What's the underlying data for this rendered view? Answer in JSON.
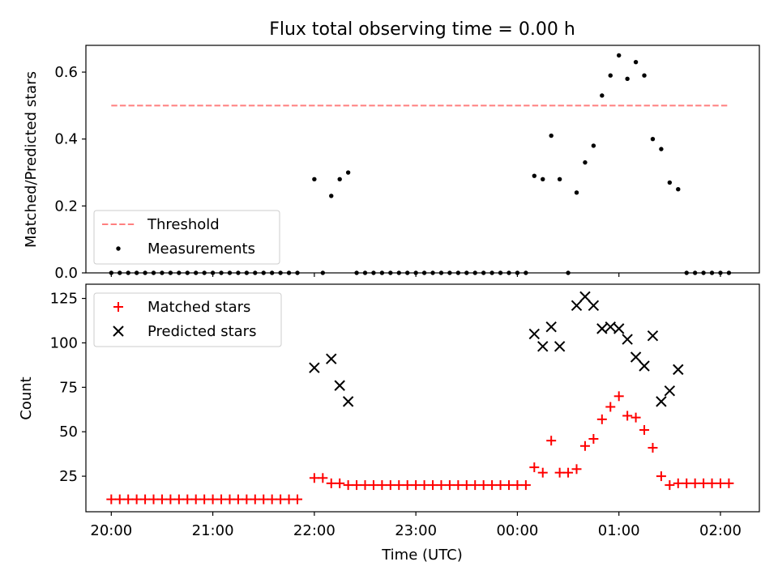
{
  "chart_data": [
    {
      "type": "scatter",
      "title": "Flux total observing time = 0.00 h",
      "ylabel": "Matched/Predicted stars",
      "xlabel": "",
      "x_domain": [
        "19:45",
        "02:23"
      ],
      "ylim": [
        0,
        0.68
      ],
      "y_ticks": [
        "0.0",
        "0.2",
        "0.4",
        "0.6"
      ],
      "legend": {
        "placement": "lower-left",
        "entries": [
          "Threshold",
          "Measurements"
        ]
      },
      "threshold": {
        "name": "Threshold",
        "value": 0.5,
        "x_range": [
          "20:00",
          "02:05"
        ],
        "color": "#ff7f7f"
      },
      "series": [
        {
          "name": "Measurements",
          "color": "#000000",
          "marker": "dot",
          "points": [
            [
              "20:00",
              0
            ],
            [
              "20:05",
              0
            ],
            [
              "20:10",
              0
            ],
            [
              "20:15",
              0
            ],
            [
              "20:20",
              0
            ],
            [
              "20:25",
              0
            ],
            [
              "20:30",
              0
            ],
            [
              "20:35",
              0
            ],
            [
              "20:40",
              0
            ],
            [
              "20:45",
              0
            ],
            [
              "20:50",
              0
            ],
            [
              "20:55",
              0
            ],
            [
              "21:00",
              0
            ],
            [
              "21:05",
              0
            ],
            [
              "21:10",
              0
            ],
            [
              "21:15",
              0
            ],
            [
              "21:20",
              0
            ],
            [
              "21:25",
              0
            ],
            [
              "21:30",
              0
            ],
            [
              "21:35",
              0
            ],
            [
              "21:40",
              0
            ],
            [
              "21:45",
              0
            ],
            [
              "21:50",
              0
            ],
            [
              "22:00",
              0.28
            ],
            [
              "22:05",
              0
            ],
            [
              "22:10",
              0.23
            ],
            [
              "22:15",
              0.28
            ],
            [
              "22:20",
              0.3
            ],
            [
              "22:25",
              0
            ],
            [
              "22:30",
              0
            ],
            [
              "22:35",
              0
            ],
            [
              "22:40",
              0
            ],
            [
              "22:45",
              0
            ],
            [
              "22:50",
              0
            ],
            [
              "22:55",
              0
            ],
            [
              "23:00",
              0
            ],
            [
              "23:05",
              0
            ],
            [
              "23:10",
              0
            ],
            [
              "23:15",
              0
            ],
            [
              "23:20",
              0
            ],
            [
              "23:25",
              0
            ],
            [
              "23:30",
              0
            ],
            [
              "23:35",
              0
            ],
            [
              "23:40",
              0
            ],
            [
              "23:45",
              0
            ],
            [
              "23:50",
              0
            ],
            [
              "23:55",
              0
            ],
            [
              "00:00",
              0
            ],
            [
              "00:05",
              0
            ],
            [
              "00:10",
              0.29
            ],
            [
              "00:15",
              0.28
            ],
            [
              "00:20",
              0.41
            ],
            [
              "00:25",
              0.28
            ],
            [
              "00:30",
              0
            ],
            [
              "00:35",
              0.24
            ],
            [
              "00:40",
              0.33
            ],
            [
              "00:45",
              0.38
            ],
            [
              "00:50",
              0.53
            ],
            [
              "00:55",
              0.59
            ],
            [
              "01:00",
              0.65
            ],
            [
              "01:05",
              0.58
            ],
            [
              "01:10",
              0.63
            ],
            [
              "01:15",
              0.59
            ],
            [
              "01:20",
              0.4
            ],
            [
              "01:25",
              0.37
            ],
            [
              "01:30",
              0.27
            ],
            [
              "01:35",
              0.25
            ],
            [
              "01:40",
              0
            ],
            [
              "01:45",
              0
            ],
            [
              "01:50",
              0
            ],
            [
              "01:55",
              0
            ],
            [
              "02:00",
              0
            ],
            [
              "02:05",
              0
            ]
          ]
        }
      ]
    },
    {
      "type": "scatter",
      "title": "",
      "ylabel": "Count",
      "xlabel": "Time (UTC)",
      "x_domain": [
        "19:45",
        "02:23"
      ],
      "ylim": [
        5,
        133
      ],
      "y_ticks": [
        25,
        50,
        75,
        100,
        125
      ],
      "x_ticks": [
        "20:00",
        "21:00",
        "22:00",
        "23:00",
        "00:00",
        "01:00",
        "02:00"
      ],
      "legend": {
        "placement": "upper-left",
        "entries": [
          "Matched stars",
          "Predicted stars"
        ]
      },
      "series": [
        {
          "name": "Matched stars",
          "color": "#ff0000",
          "marker": "plus",
          "points": [
            [
              "20:00",
              12
            ],
            [
              "20:05",
              12
            ],
            [
              "20:10",
              12
            ],
            [
              "20:15",
              12
            ],
            [
              "20:20",
              12
            ],
            [
              "20:25",
              12
            ],
            [
              "20:30",
              12
            ],
            [
              "20:35",
              12
            ],
            [
              "20:40",
              12
            ],
            [
              "20:45",
              12
            ],
            [
              "20:50",
              12
            ],
            [
              "20:55",
              12
            ],
            [
              "21:00",
              12
            ],
            [
              "21:05",
              12
            ],
            [
              "21:10",
              12
            ],
            [
              "21:15",
              12
            ],
            [
              "21:20",
              12
            ],
            [
              "21:25",
              12
            ],
            [
              "21:30",
              12
            ],
            [
              "21:35",
              12
            ],
            [
              "21:40",
              12
            ],
            [
              "21:45",
              12
            ],
            [
              "21:50",
              12
            ],
            [
              "22:00",
              24
            ],
            [
              "22:05",
              24
            ],
            [
              "22:10",
              21
            ],
            [
              "22:15",
              21
            ],
            [
              "22:20",
              20
            ],
            [
              "22:25",
              20
            ],
            [
              "22:30",
              20
            ],
            [
              "22:35",
              20
            ],
            [
              "22:40",
              20
            ],
            [
              "22:45",
              20
            ],
            [
              "22:50",
              20
            ],
            [
              "22:55",
              20
            ],
            [
              "23:00",
              20
            ],
            [
              "23:05",
              20
            ],
            [
              "23:10",
              20
            ],
            [
              "23:15",
              20
            ],
            [
              "23:20",
              20
            ],
            [
              "23:25",
              20
            ],
            [
              "23:30",
              20
            ],
            [
              "23:35",
              20
            ],
            [
              "23:40",
              20
            ],
            [
              "23:45",
              20
            ],
            [
              "23:50",
              20
            ],
            [
              "23:55",
              20
            ],
            [
              "00:00",
              20
            ],
            [
              "00:05",
              20
            ],
            [
              "00:10",
              30
            ],
            [
              "00:15",
              27
            ],
            [
              "00:20",
              45
            ],
            [
              "00:25",
              27
            ],
            [
              "00:30",
              27
            ],
            [
              "00:35",
              29
            ],
            [
              "00:40",
              42
            ],
            [
              "00:45",
              46
            ],
            [
              "00:50",
              57
            ],
            [
              "00:55",
              64
            ],
            [
              "01:00",
              70
            ],
            [
              "01:05",
              59
            ],
            [
              "01:10",
              58
            ],
            [
              "01:15",
              51
            ],
            [
              "01:20",
              41
            ],
            [
              "01:25",
              25
            ],
            [
              "01:30",
              20
            ],
            [
              "01:35",
              21
            ],
            [
              "01:40",
              21
            ],
            [
              "01:45",
              21
            ],
            [
              "01:50",
              21
            ],
            [
              "01:55",
              21
            ],
            [
              "02:00",
              21
            ],
            [
              "02:05",
              21
            ]
          ]
        },
        {
          "name": "Predicted stars",
          "color": "#000000",
          "marker": "x",
          "points": [
            [
              "22:00",
              86
            ],
            [
              "22:10",
              91
            ],
            [
              "22:15",
              76
            ],
            [
              "22:20",
              67
            ],
            [
              "00:10",
              105
            ],
            [
              "00:15",
              98
            ],
            [
              "00:20",
              109
            ],
            [
              "00:25",
              98
            ],
            [
              "00:35",
              121
            ],
            [
              "00:40",
              126
            ],
            [
              "00:45",
              121
            ],
            [
              "00:50",
              108
            ],
            [
              "00:55",
              109
            ],
            [
              "01:00",
              108
            ],
            [
              "01:05",
              102
            ],
            [
              "01:10",
              92
            ],
            [
              "01:15",
              87
            ],
            [
              "01:20",
              104
            ],
            [
              "01:25",
              67
            ],
            [
              "01:30",
              73
            ],
            [
              "01:35",
              85
            ]
          ]
        }
      ]
    }
  ]
}
